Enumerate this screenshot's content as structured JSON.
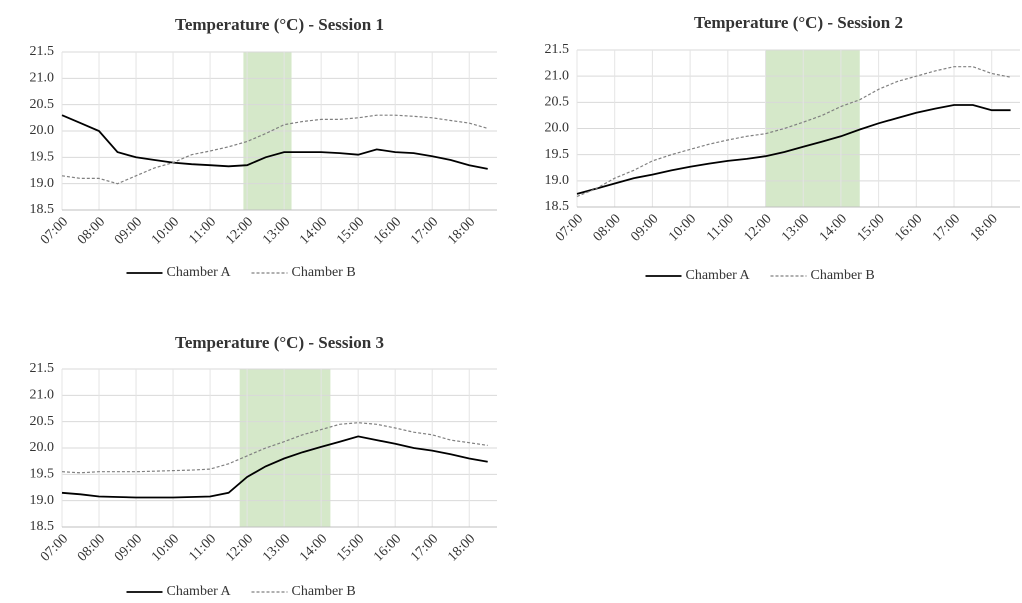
{
  "chart_data": [
    {
      "type": "line",
      "title": "Temperature (°C) - Session 1",
      "x": [
        7,
        7.5,
        8,
        8.5,
        9,
        9.5,
        10,
        10.5,
        11,
        11.5,
        12,
        12.5,
        13,
        13.5,
        14,
        14.5,
        15,
        15.5,
        16,
        16.5,
        17,
        17.5,
        18,
        18.5
      ],
      "series": [
        {
          "name": "Chamber A",
          "color": "#000000",
          "dashed": false,
          "values": [
            20.3,
            20.15,
            20.0,
            19.6,
            19.5,
            19.45,
            19.4,
            19.37,
            19.35,
            19.33,
            19.35,
            19.5,
            19.6,
            19.6,
            19.6,
            19.58,
            19.55,
            19.65,
            19.6,
            19.58,
            19.52,
            19.45,
            19.35,
            19.28
          ]
        },
        {
          "name": "Chamber B",
          "color": "#808080",
          "dashed": true,
          "values": [
            19.15,
            19.1,
            19.1,
            19.0,
            19.15,
            19.3,
            19.4,
            19.55,
            19.62,
            19.7,
            19.8,
            19.95,
            20.12,
            20.18,
            20.22,
            20.22,
            20.25,
            20.3,
            20.3,
            20.28,
            20.25,
            20.2,
            20.15,
            20.05
          ]
        }
      ],
      "highlight": [
        11.9,
        13.2
      ],
      "highlight_color": "#d5e8c9",
      "xlim": [
        7,
        18.75
      ],
      "xticks": [
        {
          "value": 7,
          "label": "07:00"
        },
        {
          "value": 8,
          "label": "08:00"
        },
        {
          "value": 9,
          "label": "09:00"
        },
        {
          "value": 10,
          "label": "10:00"
        },
        {
          "value": 11,
          "label": "11:00"
        },
        {
          "value": 12,
          "label": "12:00"
        },
        {
          "value": 13,
          "label": "13:00"
        },
        {
          "value": 14,
          "label": "14:00"
        },
        {
          "value": 15,
          "label": "15:00"
        },
        {
          "value": 16,
          "label": "16:00"
        },
        {
          "value": 17,
          "label": "17:00"
        },
        {
          "value": 18,
          "label": "18:00"
        }
      ],
      "ylim": [
        18.5,
        21.5
      ],
      "yticks": [
        18.5,
        {
          "value": 19,
          "label": "19.0"
        },
        19.5,
        {
          "value": 20,
          "label": "20.0"
        },
        20.5,
        {
          "value": 21,
          "label": "21.0"
        },
        21.5
      ],
      "grid": true,
      "legend": "bottom"
    },
    {
      "type": "line",
      "title": "Temperature (°C) - Session  2",
      "x": [
        7,
        7.5,
        8,
        8.5,
        9,
        9.5,
        10,
        10.5,
        11,
        11.5,
        12,
        12.5,
        13,
        13.5,
        14,
        14.5,
        15,
        15.5,
        16,
        16.5,
        17,
        17.5,
        18,
        18.5
      ],
      "series": [
        {
          "name": "Chamber A",
          "color": "#000000",
          "dashed": false,
          "values": [
            18.75,
            18.85,
            18.95,
            19.05,
            19.12,
            19.2,
            19.27,
            19.33,
            19.38,
            19.42,
            19.47,
            19.55,
            19.65,
            19.75,
            19.85,
            19.98,
            20.1,
            20.2,
            20.3,
            20.38,
            20.45,
            20.45,
            20.35,
            20.35
          ]
        },
        {
          "name": "Chamber B",
          "color": "#808080",
          "dashed": true,
          "values": [
            18.7,
            18.85,
            19.05,
            19.2,
            19.38,
            19.5,
            19.6,
            19.7,
            19.78,
            19.85,
            19.9,
            20.0,
            20.12,
            20.25,
            20.42,
            20.55,
            20.75,
            20.9,
            21.0,
            21.1,
            21.18,
            21.18,
            21.05,
            20.98
          ]
        }
      ],
      "highlight": [
        12.0,
        14.5
      ],
      "highlight_color": "#d5e8c9",
      "xlim": [
        7,
        18.75
      ],
      "xticks": [
        {
          "value": 7,
          "label": "07:00"
        },
        {
          "value": 8,
          "label": "08:00"
        },
        {
          "value": 9,
          "label": "09:00"
        },
        {
          "value": 10,
          "label": "10:00"
        },
        {
          "value": 11,
          "label": "11:00"
        },
        {
          "value": 12,
          "label": "12:00"
        },
        {
          "value": 13,
          "label": "13:00"
        },
        {
          "value": 14,
          "label": "14:00"
        },
        {
          "value": 15,
          "label": "15:00"
        },
        {
          "value": 16,
          "label": "16:00"
        },
        {
          "value": 17,
          "label": "17:00"
        },
        {
          "value": 18,
          "label": "18:00"
        }
      ],
      "ylim": [
        18.5,
        21.5
      ],
      "yticks": [
        18.5,
        {
          "value": 19,
          "label": "19.0"
        },
        19.5,
        {
          "value": 20,
          "label": "20.0"
        },
        20.5,
        {
          "value": 21,
          "label": "21.0"
        },
        21.5
      ],
      "grid": true,
      "legend": "bottom"
    },
    {
      "type": "line",
      "title": "Temperature (°C) - Session  3",
      "x": [
        7,
        7.5,
        8,
        8.5,
        9,
        9.5,
        10,
        10.5,
        11,
        11.5,
        12,
        12.5,
        13,
        13.5,
        14,
        14.5,
        15,
        15.5,
        16,
        16.5,
        17,
        17.5,
        18,
        18.5
      ],
      "series": [
        {
          "name": "Chamber A",
          "color": "#000000",
          "dashed": false,
          "values": [
            19.15,
            19.12,
            19.08,
            19.07,
            19.06,
            19.06,
            19.06,
            19.07,
            19.08,
            19.15,
            19.45,
            19.65,
            19.8,
            19.92,
            20.02,
            20.12,
            20.22,
            20.15,
            20.08,
            20.0,
            19.95,
            19.88,
            19.8,
            19.74
          ]
        },
        {
          "name": "Chamber B",
          "color": "#808080",
          "dashed": true,
          "values": [
            19.55,
            19.53,
            19.55,
            19.55,
            19.55,
            19.56,
            19.57,
            19.58,
            19.6,
            19.7,
            19.85,
            20.0,
            20.12,
            20.25,
            20.35,
            20.45,
            20.48,
            20.45,
            20.38,
            20.3,
            20.25,
            20.15,
            20.1,
            20.05
          ]
        }
      ],
      "highlight": [
        11.8,
        14.25
      ],
      "highlight_color": "#d5e8c9",
      "xlim": [
        7,
        18.75
      ],
      "xticks": [
        {
          "value": 7,
          "label": "07:00"
        },
        {
          "value": 8,
          "label": "08:00"
        },
        {
          "value": 9,
          "label": "09:00"
        },
        {
          "value": 10,
          "label": "10:00"
        },
        {
          "value": 11,
          "label": "11:00"
        },
        {
          "value": 12,
          "label": "12:00"
        },
        {
          "value": 13,
          "label": "13:00"
        },
        {
          "value": 14,
          "label": "14:00"
        },
        {
          "value": 15,
          "label": "15:00"
        },
        {
          "value": 16,
          "label": "16:00"
        },
        {
          "value": 17,
          "label": "17:00"
        },
        {
          "value": 18,
          "label": "18:00"
        }
      ],
      "ylim": [
        18.5,
        21.5
      ],
      "yticks": [
        18.5,
        {
          "value": 19,
          "label": "19.0"
        },
        19.5,
        {
          "value": 20,
          "label": "20.0"
        },
        20.5,
        {
          "value": 21,
          "label": "21.0"
        },
        21.5
      ],
      "grid": true,
      "legend": "bottom"
    }
  ]
}
